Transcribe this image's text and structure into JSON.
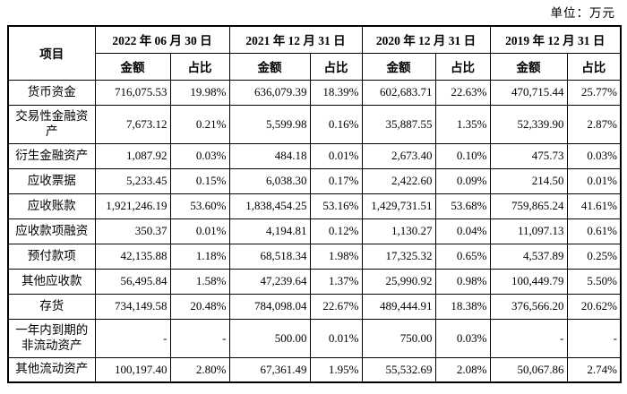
{
  "unit_label": "单位：万元",
  "table": {
    "item_header": "项目",
    "amount_header": "金额",
    "ratio_header": "占比",
    "periods": [
      "2022 年 06 月 30 日",
      "2021 年 12 月 31 日",
      "2020 年 12 月 31 日",
      "2019 年 12 月 31 日"
    ],
    "rows": [
      {
        "label": "货币资金",
        "values": [
          "716,075.53",
          "19.98%",
          "636,079.39",
          "18.39%",
          "602,683.71",
          "22.63%",
          "470,715.44",
          "25.77%"
        ]
      },
      {
        "label": "交易性金融资产",
        "values": [
          "7,673.12",
          "0.21%",
          "5,599.98",
          "0.16%",
          "35,887.55",
          "1.35%",
          "52,339.90",
          "2.87%"
        ]
      },
      {
        "label": "衍生金融资产",
        "values": [
          "1,087.92",
          "0.03%",
          "484.18",
          "0.01%",
          "2,673.40",
          "0.10%",
          "475.73",
          "0.03%"
        ]
      },
      {
        "label": "应收票据",
        "values": [
          "5,233.45",
          "0.15%",
          "6,038.30",
          "0.17%",
          "2,422.60",
          "0.09%",
          "214.50",
          "0.01%"
        ]
      },
      {
        "label": "应收账款",
        "values": [
          "1,921,246.19",
          "53.60%",
          "1,838,454.25",
          "53.16%",
          "1,429,731.51",
          "53.68%",
          "759,865.24",
          "41.61%"
        ]
      },
      {
        "label": "应收款项融资",
        "values": [
          "350.37",
          "0.01%",
          "4,194.81",
          "0.12%",
          "1,130.27",
          "0.04%",
          "11,097.13",
          "0.61%"
        ]
      },
      {
        "label": "预付款项",
        "values": [
          "42,135.88",
          "1.18%",
          "68,518.34",
          "1.98%",
          "17,325.32",
          "0.65%",
          "4,537.89",
          "0.25%"
        ]
      },
      {
        "label": "其他应收款",
        "values": [
          "56,495.84",
          "1.58%",
          "47,239.64",
          "1.37%",
          "25,990.92",
          "0.98%",
          "100,449.79",
          "5.50%"
        ]
      },
      {
        "label": "存货",
        "values": [
          "734,149.58",
          "20.48%",
          "784,098.04",
          "22.67%",
          "489,444.91",
          "18.38%",
          "376,566.20",
          "20.62%"
        ]
      },
      {
        "label": "一年内到期的非流动资产",
        "values": [
          "-",
          "-",
          "500.00",
          "0.01%",
          "750.00",
          "0.03%",
          "-",
          "-"
        ]
      },
      {
        "label": "其他流动资产",
        "values": [
          "100,197.40",
          "2.80%",
          "67,361.49",
          "1.95%",
          "55,532.69",
          "2.08%",
          "50,067.86",
          "2.74%"
        ]
      }
    ]
  }
}
